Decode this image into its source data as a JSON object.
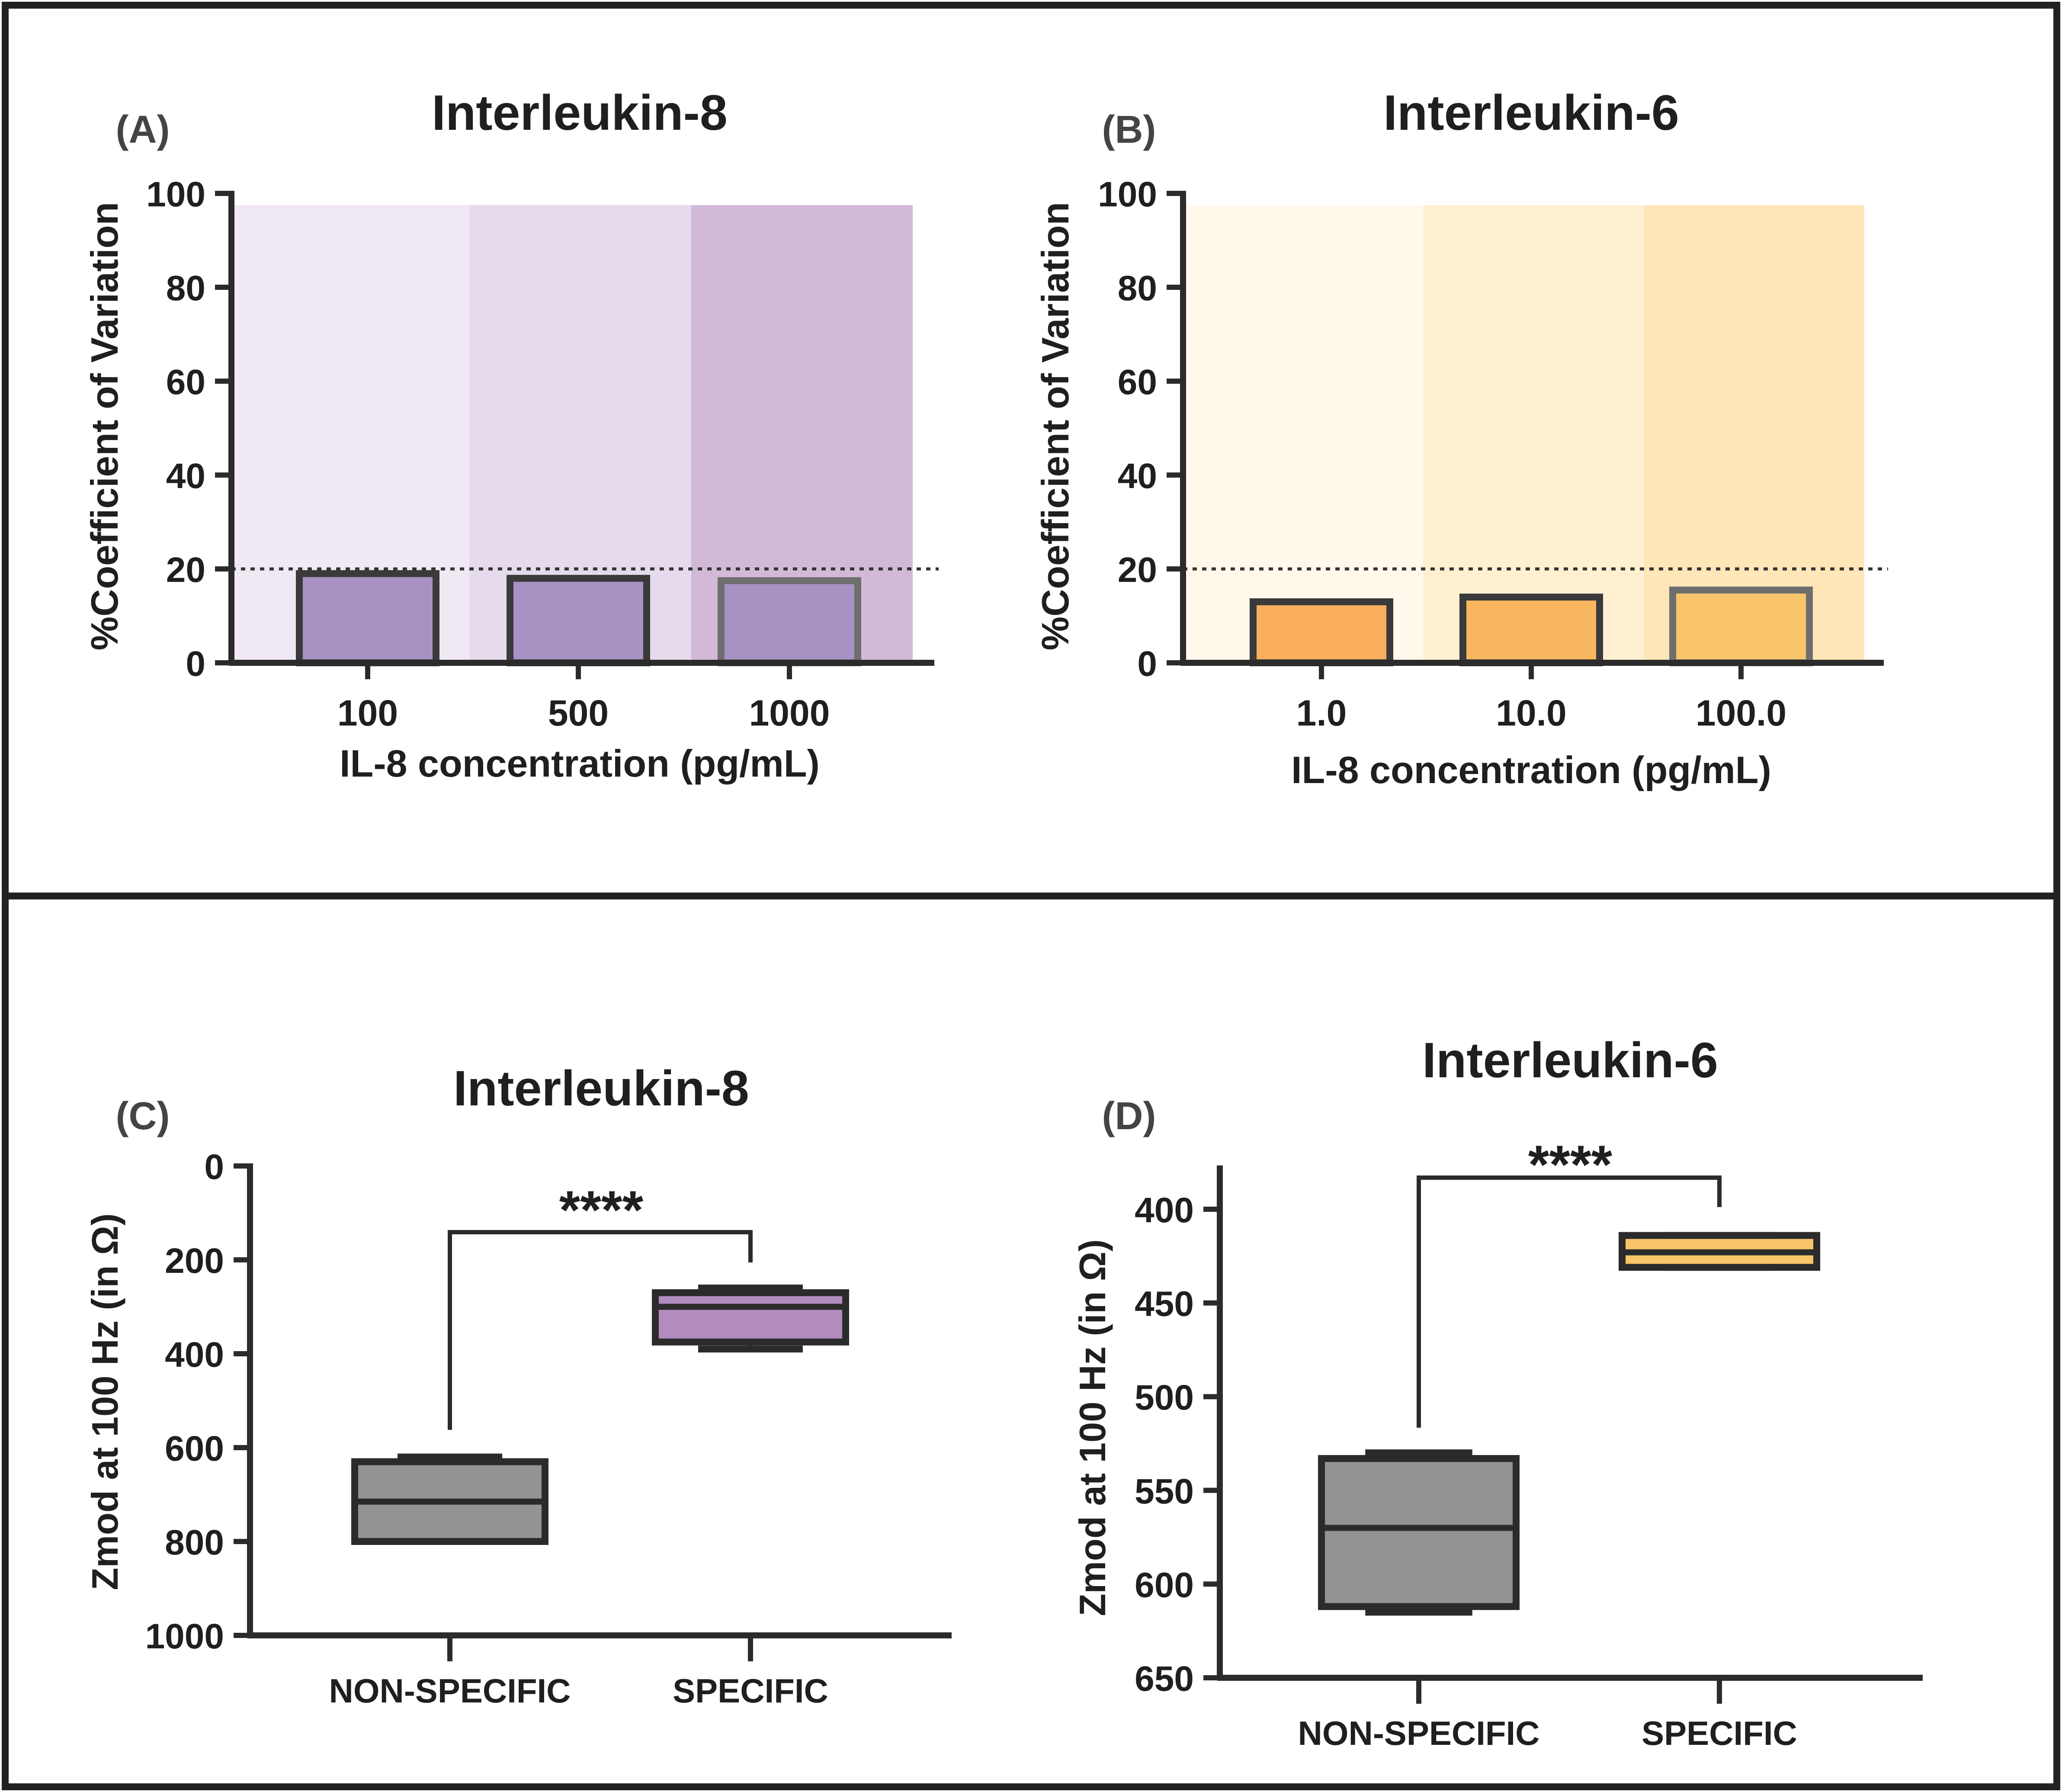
{
  "chart_data": [
    {
      "panel": "(A)",
      "type": "bar",
      "title": "Interleukin-8",
      "xlabel": "IL-8 concentration (pg/mL)",
      "ylabel": "%Coefficient of Variation",
      "categories": [
        "100",
        "500",
        "1000"
      ],
      "values": [
        19,
        18,
        17.5
      ],
      "ylim": [
        0,
        100
      ],
      "yticks": [
        "0",
        "20",
        "40",
        "60",
        "80",
        "100"
      ],
      "reference_line": 20,
      "colors": {
        "bar": "#a892c4",
        "bands": [
          "#f0e8f2",
          "#e6dbec",
          "#d3b9d8"
        ],
        "bar_stroke": [
          "#3a3a3a",
          "#3a3a3a",
          "#6e6e6e"
        ]
      }
    },
    {
      "panel": "(B)",
      "type": "bar",
      "title": "Interleukin-6",
      "xlabel": "IL-8 concentration (pg/mL)",
      "ylabel": "%Coefficient of Variation",
      "categories": [
        "1.0",
        "10.0",
        "100.0"
      ],
      "values": [
        13,
        14,
        15.5
      ],
      "ylim": [
        0,
        100
      ],
      "yticks": [
        "0",
        "20",
        "40",
        "60",
        "80",
        "100"
      ],
      "reference_line": 20,
      "colors": {
        "bar": [
          "#f8ae5d",
          "#f8b660",
          "#f8c46c"
        ],
        "bands": [
          "#fff8eb",
          "#fff0d2",
          "#ffe6b8"
        ],
        "bar_stroke": [
          "#3a3a3a",
          "#3a3a3a",
          "#6e6e6e"
        ]
      }
    },
    {
      "panel": "(C)",
      "type": "box",
      "title": "Interleukin-8",
      "ylabel": "Zmod at 100  Hz (in Ω)",
      "categories": [
        "NON-SPECIFIC",
        "SPECIFIC"
      ],
      "ylim": [
        0,
        1000
      ],
      "y_inverted": true,
      "yticks": [
        "0",
        "200",
        "400",
        "600",
        "800",
        "1000"
      ],
      "boxes": [
        {
          "name": "NON-SPECIFIC",
          "min": 620,
          "q1": 630,
          "median": 715,
          "q3": 800,
          "max": 800,
          "color": "#939393"
        },
        {
          "name": "SPECIFIC",
          "min": 260,
          "q1": 270,
          "median": 300,
          "q3": 375,
          "max": 390,
          "color": "#b28bbf"
        }
      ],
      "significance": "****"
    },
    {
      "panel": "(D)",
      "type": "box",
      "title": "Interleukin-6",
      "ylabel": "Zmod at 100  Hz (in Ω)",
      "categories": [
        "NON-SPECIFIC",
        "SPECIFIC"
      ],
      "ylim": [
        400,
        650
      ],
      "y_axis_top": 378,
      "y_inverted": true,
      "yticks": [
        "400",
        "450",
        "500",
        "550",
        "600",
        "650"
      ],
      "boxes": [
        {
          "name": "NON-SPECIFIC",
          "min": 530,
          "q1": 533,
          "median": 570,
          "q3": 612,
          "max": 615,
          "color": "#939393"
        },
        {
          "name": "SPECIFIC",
          "min": 414,
          "q1": 414,
          "median": 423,
          "q3": 431,
          "max": 431,
          "color": "#f8c56b"
        }
      ],
      "significance": "****"
    }
  ]
}
